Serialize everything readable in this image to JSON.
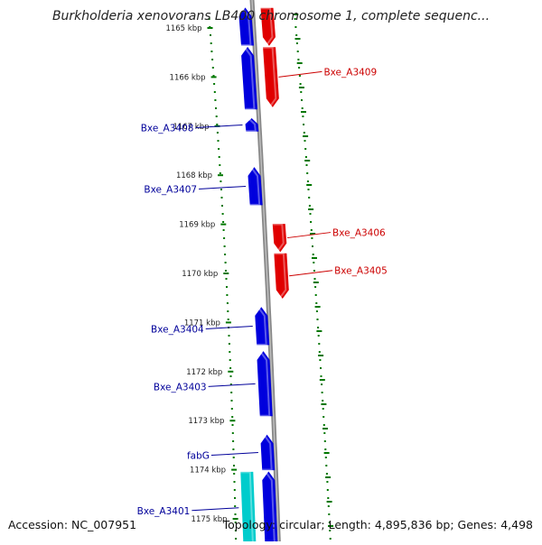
{
  "title": "Burkholderia xenovorans LB400 chromosome 1, complete sequenc...",
  "accession": "Accession: NC_007951",
  "topology": "Topology: circular; Length: 4,895,836 bp; Genes: 4,498",
  "colors": {
    "forward": "#e00000",
    "reverse": "#0000dd",
    "other": "#00cccc",
    "label_forward": "#cc0000",
    "label_reverse": "#00009a",
    "tick": "#007700",
    "backbone": "#888888"
  },
  "scale": {
    "unit": "kbp",
    "ticks": [
      {
        "kbp": 1165,
        "label": "1165 kbp"
      },
      {
        "kbp": 1166,
        "label": "1166 kbp"
      },
      {
        "kbp": 1167,
        "label": "1167 kbp"
      },
      {
        "kbp": 1168,
        "label": "1168 kbp"
      },
      {
        "kbp": 1169,
        "label": "1169 kbp"
      },
      {
        "kbp": 1170,
        "label": "1170 kbp"
      },
      {
        "kbp": 1171,
        "label": "1171 kbp"
      },
      {
        "kbp": 1172,
        "label": "1172 kbp"
      },
      {
        "kbp": 1173,
        "label": "1173 kbp"
      },
      {
        "kbp": 1174,
        "label": "1174 kbp"
      },
      {
        "kbp": 1175,
        "label": "1175 kbp"
      }
    ]
  },
  "genes": [
    {
      "start_kbp": 1164.6,
      "end_kbp": 1165.35,
      "strand": "forward",
      "label": ""
    },
    {
      "start_kbp": 1165.4,
      "end_kbp": 1166.6,
      "strand": "forward",
      "label": "Bxe_A3409"
    },
    {
      "start_kbp": 1164.6,
      "end_kbp": 1165.35,
      "strand": "reverse",
      "label": ""
    },
    {
      "start_kbp": 1165.4,
      "end_kbp": 1166.65,
      "strand": "reverse",
      "label": ""
    },
    {
      "start_kbp": 1166.85,
      "end_kbp": 1167.1,
      "strand": "reverse",
      "label": "Bxe_A3408"
    },
    {
      "start_kbp": 1167.85,
      "end_kbp": 1168.6,
      "strand": "reverse",
      "label": "Bxe_A3407"
    },
    {
      "start_kbp": 1169.0,
      "end_kbp": 1169.55,
      "strand": "forward",
      "label": "Bxe_A3406"
    },
    {
      "start_kbp": 1169.6,
      "end_kbp": 1170.5,
      "strand": "forward",
      "label": "Bxe_A3405"
    },
    {
      "start_kbp": 1170.7,
      "end_kbp": 1171.45,
      "strand": "reverse",
      "label": "Bxe_A3404"
    },
    {
      "start_kbp": 1171.6,
      "end_kbp": 1172.9,
      "strand": "reverse",
      "label": "Bxe_A3403"
    },
    {
      "start_kbp": 1173.3,
      "end_kbp": 1174.0,
      "strand": "reverse",
      "label": "fabG"
    },
    {
      "start_kbp": 1174.05,
      "end_kbp": 1175.5,
      "strand": "reverse",
      "label": ""
    },
    {
      "start_kbp": 1174.05,
      "end_kbp": 1175.5,
      "strand": "other",
      "label": "Bxe_A3401"
    }
  ]
}
